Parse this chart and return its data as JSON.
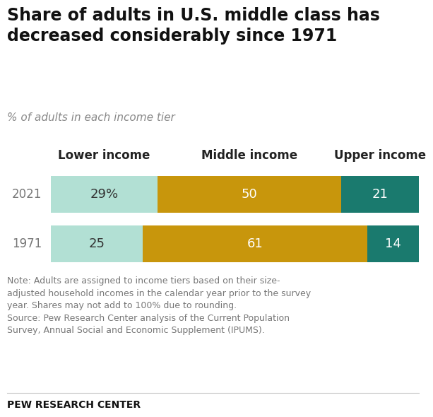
{
  "title": "Share of adults in U.S. middle class has\ndecreased considerably since 1971",
  "subtitle": "% of adults in each income tier",
  "years": [
    "2021",
    "1971"
  ],
  "lower_income": [
    29,
    25
  ],
  "middle_income": [
    50,
    61
  ],
  "upper_income": [
    21,
    14
  ],
  "lower_labels": [
    "29%",
    "25"
  ],
  "middle_labels": [
    "50",
    "61"
  ],
  "upper_labels": [
    "21",
    "14"
  ],
  "color_lower": "#b2e0d4",
  "color_middle": "#c8960c",
  "color_upper": "#1a7a6e",
  "note_text": "Note: Adults are assigned to income tiers based on their size-\nadjusted household incomes in the calendar year prior to the survey\nyear. Shares may not add to 100% due to rounding.\nSource: Pew Research Center analysis of the Current Population\nSurvey, Annual Social and Economic Supplement (IPUMS).",
  "footer": "PEW RESEARCH CENTER",
  "col_labels": [
    "Lower income",
    "Middle income",
    "Upper income"
  ],
  "background_color": "#ffffff",
  "title_color": "#111111",
  "subtitle_color": "#888888",
  "year_color": "#777777",
  "note_color": "#777777",
  "footer_color": "#111111",
  "lower_text_color": "#333333",
  "mid_text_color": "#ffffff",
  "up_text_color": "#ffffff"
}
